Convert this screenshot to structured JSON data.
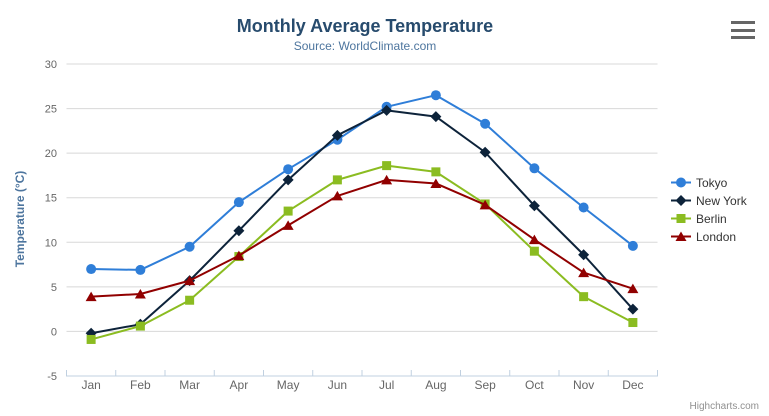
{
  "title": "Monthly Average Temperature",
  "subtitle": "Source: WorldClimate.com",
  "credit": "Highcharts.com",
  "icons": {
    "context_menu": "hamburger-menu-icon"
  },
  "colors": {
    "title": "#274b6d",
    "subtitle": "#4d759e",
    "axis_title": "#4d759e",
    "tick_label": "#666666",
    "grid_line": "#d8d8d8",
    "x_axis_line": "#c0d0e0",
    "legend_text": "#333333",
    "credit": "#909090",
    "menu_icon": "#666666"
  },
  "chart_data": {
    "type": "line",
    "title": "Monthly Average Temperature",
    "subtitle": "Source: WorldClimate.com",
    "xlabel": "",
    "ylabel": "Temperature (°C)",
    "ylim": [
      -5,
      30
    ],
    "yticks": [
      -5,
      0,
      5,
      10,
      15,
      20,
      25,
      30
    ],
    "grid": true,
    "legend_position": "right",
    "categories": [
      "Jan",
      "Feb",
      "Mar",
      "Apr",
      "May",
      "Jun",
      "Jul",
      "Aug",
      "Sep",
      "Oct",
      "Nov",
      "Dec"
    ],
    "series": [
      {
        "name": "Tokyo",
        "color": "#2f7ed8",
        "marker": "circle",
        "values": [
          7.0,
          6.9,
          9.5,
          14.5,
          18.2,
          21.5,
          25.2,
          26.5,
          23.3,
          18.3,
          13.9,
          9.6
        ]
      },
      {
        "name": "New York",
        "color": "#0d233a",
        "marker": "diamond",
        "values": [
          -0.2,
          0.8,
          5.7,
          11.3,
          17.0,
          22.0,
          24.8,
          24.1,
          20.1,
          14.1,
          8.6,
          2.5
        ]
      },
      {
        "name": "Berlin",
        "color": "#8bbc21",
        "marker": "square",
        "values": [
          -0.9,
          0.6,
          3.5,
          8.4,
          13.5,
          17.0,
          18.6,
          17.9,
          14.3,
          9.0,
          3.9,
          1.0
        ]
      },
      {
        "name": "London",
        "color": "#910000",
        "marker": "triangle",
        "values": [
          3.9,
          4.2,
          5.7,
          8.5,
          11.9,
          15.2,
          17.0,
          16.6,
          14.2,
          10.3,
          6.6,
          4.8
        ]
      }
    ]
  }
}
